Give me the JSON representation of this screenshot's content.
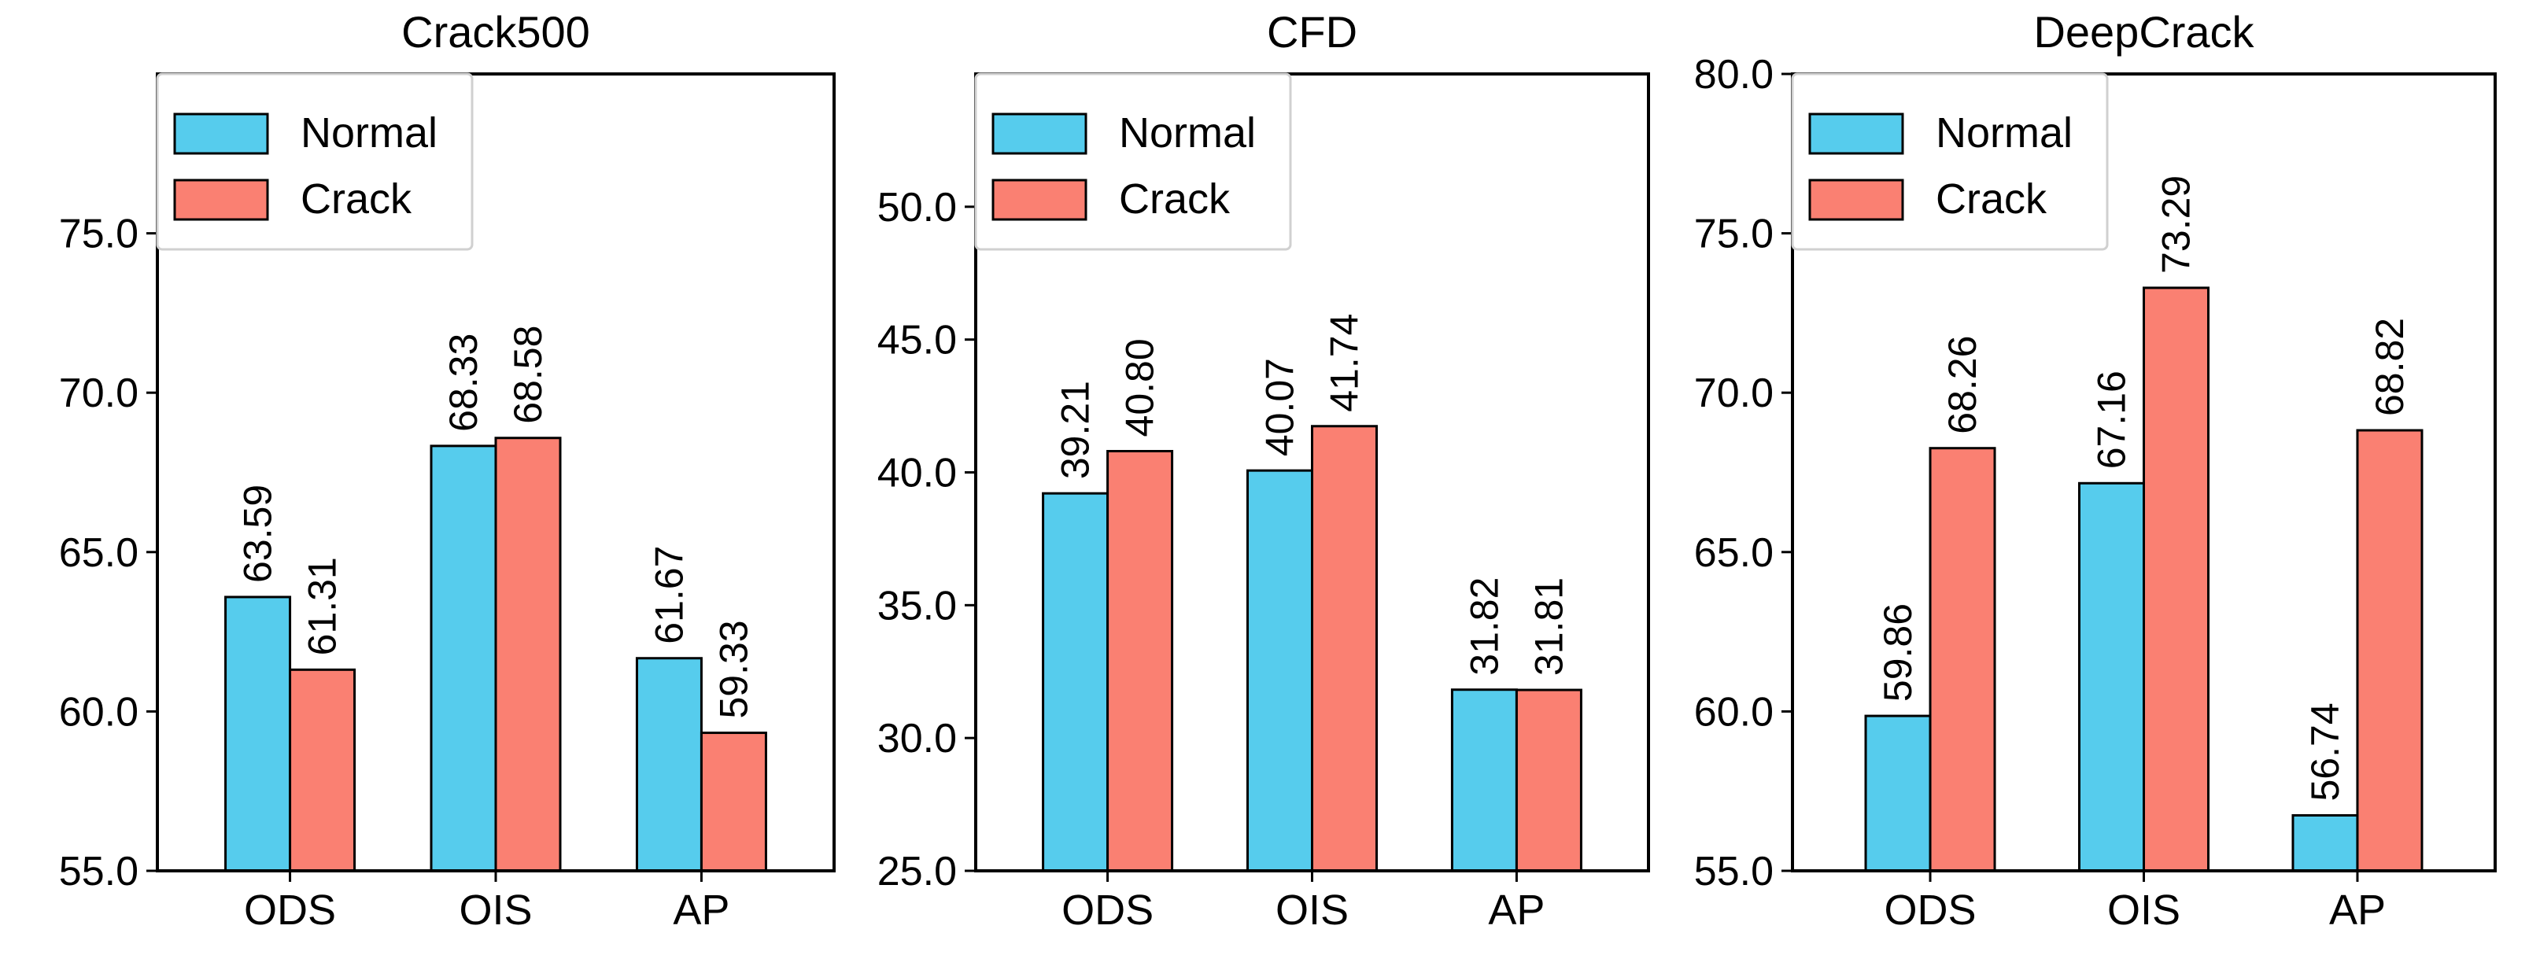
{
  "colors": {
    "normal": "#56CCED",
    "crack": "#FA8072",
    "edge": "#000000"
  },
  "legend": {
    "normal": "Normal",
    "crack": "Crack"
  },
  "chart_data": [
    {
      "type": "bar",
      "title": "Crack500",
      "categories": [
        "ODS",
        "OIS",
        "AP"
      ],
      "series": [
        {
          "name": "Normal",
          "values": [
            63.59,
            68.33,
            61.67
          ],
          "labels": [
            "63.59",
            "68.33",
            "61.67"
          ]
        },
        {
          "name": "Crack",
          "values": [
            61.31,
            68.58,
            59.33
          ],
          "labels": [
            "61.31",
            "68.58",
            "59.33"
          ]
        }
      ],
      "ylim": [
        55,
        80
      ],
      "yticks": [
        55,
        60,
        65,
        70,
        75
      ],
      "ytick_labels": [
        "55.0",
        "60.0",
        "65.0",
        "70.0",
        "75.0"
      ],
      "legend_position": "top-left"
    },
    {
      "type": "bar",
      "title": "CFD",
      "categories": [
        "ODS",
        "OIS",
        "AP"
      ],
      "series": [
        {
          "name": "Normal",
          "values": [
            39.21,
            40.07,
            31.82
          ],
          "labels": [
            "39.21",
            "40.07",
            "31.82"
          ]
        },
        {
          "name": "Crack",
          "values": [
            40.8,
            41.74,
            31.81
          ],
          "labels": [
            "40.80",
            "41.74",
            "31.81"
          ]
        }
      ],
      "ylim": [
        25,
        55
      ],
      "yticks": [
        25,
        30,
        35,
        40,
        45,
        50
      ],
      "ytick_labels": [
        "25.0",
        "30.0",
        "35.0",
        "40.0",
        "45.0",
        "50.0"
      ],
      "legend_position": "top-left"
    },
    {
      "type": "bar",
      "title": "DeepCrack",
      "categories": [
        "ODS",
        "OIS",
        "AP"
      ],
      "series": [
        {
          "name": "Normal",
          "values": [
            59.86,
            67.16,
            56.74
          ],
          "labels": [
            "59.86",
            "67.16",
            "56.74"
          ]
        },
        {
          "name": "Crack",
          "values": [
            68.26,
            73.29,
            68.82
          ],
          "labels": [
            "68.26",
            "73.29",
            "68.82"
          ]
        }
      ],
      "ylim": [
        55,
        80
      ],
      "yticks": [
        55,
        60,
        65,
        70,
        75,
        80
      ],
      "ytick_labels": [
        "55.0",
        "60.0",
        "65.0",
        "70.0",
        "75.0",
        "80.0"
      ],
      "legend_position": "top-left"
    }
  ]
}
